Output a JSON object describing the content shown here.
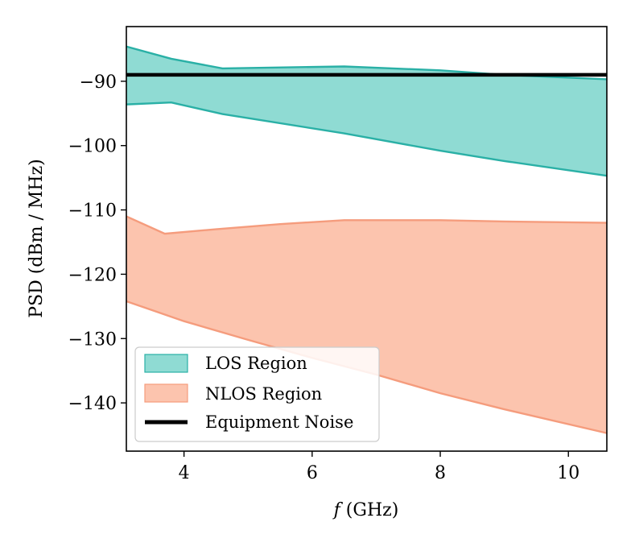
{
  "chart_data": {
    "type": "area",
    "xlabel_var": "f",
    "xlabel_unit": " (GHz)",
    "ylabel": "PSD (dBm / MHz)",
    "xlim": [
      3.1,
      10.6
    ],
    "ylim": [
      -147.5,
      -81.5
    ],
    "xticks": [
      4,
      6,
      8,
      10
    ],
    "yticks": [
      -90,
      -100,
      -110,
      -120,
      -130,
      -140
    ],
    "xtick_labels": [
      "4",
      "6",
      "8",
      "10"
    ],
    "ytick_labels": [
      "−90",
      "−100",
      "−110",
      "−120",
      "−130",
      "−140"
    ],
    "legend_position": "lower-left",
    "series": [
      {
        "name": "LOS Region",
        "kind": "band",
        "fill": "#8fdbd3",
        "stroke": "#2ab0a6",
        "upper": [
          [
            3.1,
            -84.6
          ],
          [
            3.8,
            -86.5
          ],
          [
            4.6,
            -88.0
          ],
          [
            6.5,
            -87.7
          ],
          [
            8.0,
            -88.3
          ],
          [
            9.0,
            -89.0
          ],
          [
            10.6,
            -89.7
          ]
        ],
        "lower": [
          [
            3.1,
            -93.6
          ],
          [
            3.8,
            -93.3
          ],
          [
            4.6,
            -95.1
          ],
          [
            6.5,
            -98.1
          ],
          [
            8.0,
            -100.8
          ],
          [
            9.0,
            -102.4
          ],
          [
            10.6,
            -104.7
          ]
        ]
      },
      {
        "name": "NLOS Region",
        "kind": "band",
        "fill": "#fcc4ae",
        "stroke": "#f59c7d",
        "upper": [
          [
            3.1,
            -111.0
          ],
          [
            3.7,
            -113.7
          ],
          [
            4.5,
            -113.0
          ],
          [
            5.5,
            -112.2
          ],
          [
            6.5,
            -111.6
          ],
          [
            8.0,
            -111.6
          ],
          [
            9.0,
            -111.8
          ],
          [
            10.6,
            -112.0
          ]
        ],
        "lower": [
          [
            3.1,
            -124.2
          ],
          [
            4.0,
            -127.3
          ],
          [
            5.0,
            -130.2
          ],
          [
            6.0,
            -133.0
          ],
          [
            7.0,
            -135.6
          ],
          [
            8.0,
            -138.5
          ],
          [
            9.0,
            -141.0
          ],
          [
            10.6,
            -144.7
          ]
        ]
      },
      {
        "name": "Equipment Noise",
        "kind": "line",
        "stroke": "#000000",
        "points": [
          [
            3.1,
            -89.0
          ],
          [
            10.6,
            -89.0
          ]
        ]
      }
    ]
  }
}
